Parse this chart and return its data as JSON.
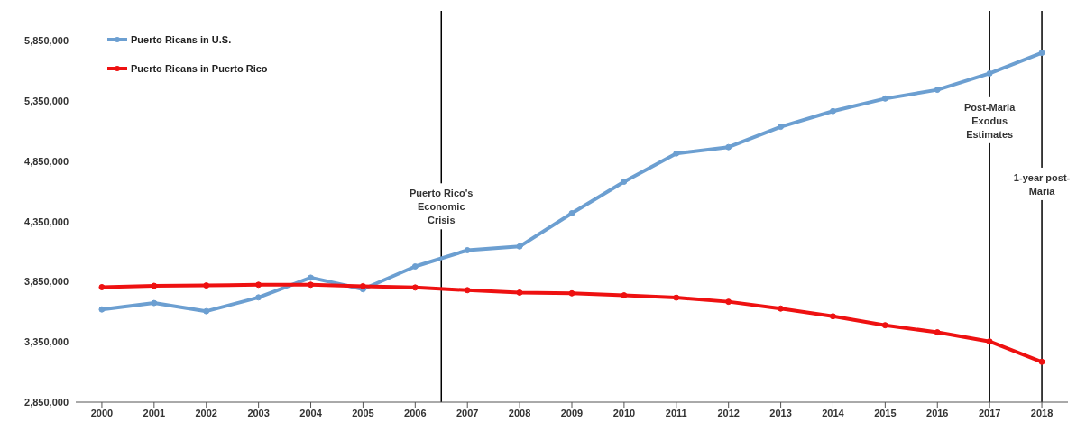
{
  "chart_data": {
    "type": "line",
    "x": [
      2000,
      2001,
      2002,
      2003,
      2004,
      2005,
      2006,
      2007,
      2008,
      2009,
      2010,
      2011,
      2012,
      2013,
      2014,
      2015,
      2016,
      2017,
      2018
    ],
    "series": [
      {
        "name": "Puerto Ricans in U.S.",
        "color": "#6c9fd1",
        "values": [
          3620000,
          3673000,
          3605000,
          3720000,
          3884000,
          3788000,
          3977000,
          4112000,
          4143000,
          4419000,
          4681000,
          4915000,
          4968000,
          5137000,
          5267000,
          5371000,
          5444000,
          5580000,
          5751000
        ]
      },
      {
        "name": "Puerto Ricans in Puerto Rico",
        "color": "#ee1111",
        "values": [
          3805000,
          3816000,
          3819000,
          3825000,
          3825000,
          3813000,
          3802000,
          3780000,
          3760000,
          3754000,
          3737000,
          3718000,
          3684000,
          3627000,
          3563000,
          3489000,
          3430000,
          3354000,
          3185000
        ]
      }
    ],
    "xlim": [
      1999.5,
      2018.5
    ],
    "xticks": [
      2000,
      2001,
      2002,
      2003,
      2004,
      2005,
      2006,
      2007,
      2008,
      2009,
      2010,
      2011,
      2012,
      2013,
      2014,
      2015,
      2016,
      2017,
      2018
    ],
    "ylim": [
      2850000,
      6100000
    ],
    "yticks": [
      {
        "value": 2850000,
        "label": "2,850,000"
      },
      {
        "value": 3350000,
        "label": "3,350,000"
      },
      {
        "value": 3850000,
        "label": "3,850,000"
      },
      {
        "value": 4350000,
        "label": "4,350,000"
      },
      {
        "value": 4850000,
        "label": "4,850,000"
      },
      {
        "value": 5350000,
        "label": "5,350,000"
      },
      {
        "value": 5850000,
        "label": "5,850,000"
      }
    ],
    "ref_lines": [
      {
        "axis": "x",
        "value": 2006.5,
        "label": "Puerto Rico's Economic Crisis",
        "color": "#000000"
      },
      {
        "axis": "x",
        "value": 2017,
        "label": "Post-Maria Exodus Estimates",
        "color": "#000000"
      },
      {
        "axis": "x",
        "value": 2018,
        "label": "1-year post-Maria",
        "color": "#000000"
      }
    ],
    "grid": false,
    "legend": "top left",
    "marker": "circle",
    "line_style": "solid"
  }
}
